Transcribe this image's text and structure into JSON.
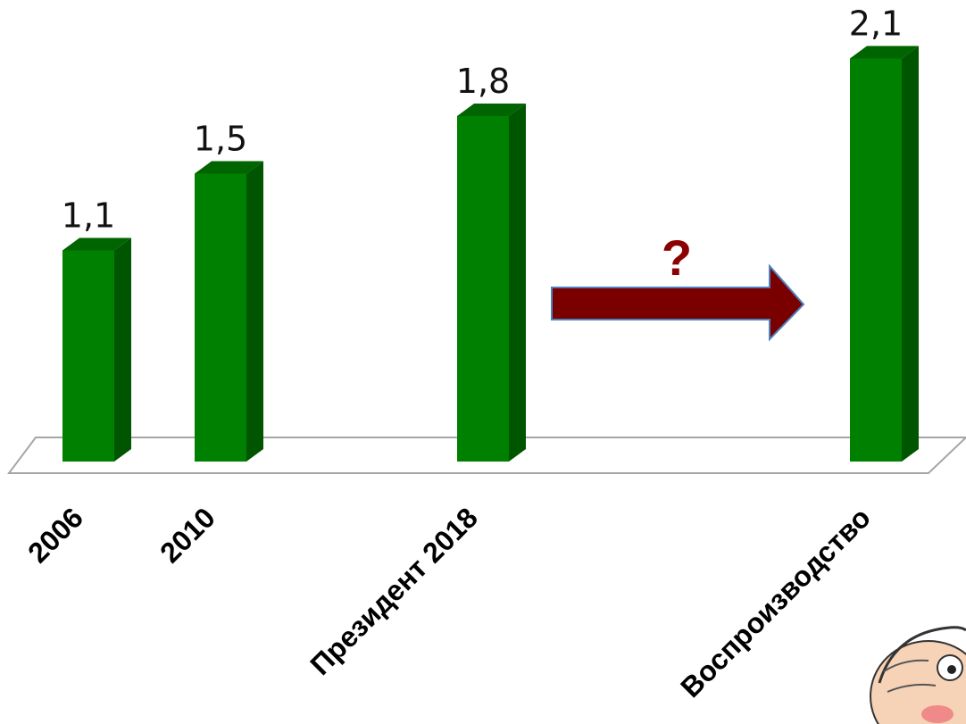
{
  "chart_data": {
    "type": "bar",
    "style": "3d",
    "categories": [
      "2006",
      "2010",
      "Президент 2018",
      "Воспроизводство"
    ],
    "values": [
      1.1,
      1.5,
      1.8,
      2.1
    ],
    "value_labels": [
      "1,1",
      "1,5",
      "1,8",
      "2,1"
    ],
    "title": "",
    "xlabel": "",
    "ylabel": "",
    "ylim": [
      0,
      2.1
    ],
    "grid": false,
    "legend": "none",
    "annotations": [
      {
        "kind": "arrow",
        "from": "Президент 2018",
        "to": "Воспроизводство",
        "label": "?"
      }
    ]
  },
  "colors": {
    "bar_front": "#008000",
    "bar_side": "#005500",
    "bar_top": "#006400",
    "arrow_fill": "#7a0000",
    "arrow_stroke": "#4f81bd",
    "question_mark": "#8b0000"
  },
  "decorations": [
    "cartoon-character-corner"
  ]
}
